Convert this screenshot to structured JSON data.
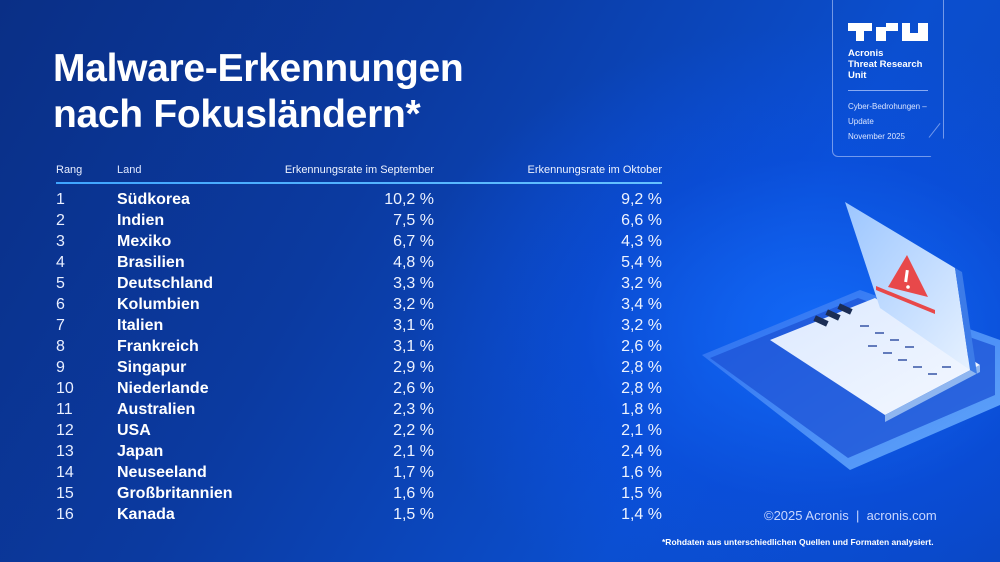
{
  "title": {
    "line1": "Malware-Erkennungen",
    "line2": "nach Fokusländern*"
  },
  "badge": {
    "logo_icon": "tru-logo-icon",
    "name_lines": [
      "Acronis",
      "Threat Research",
      "Unit"
    ],
    "meta_lines": [
      "Cyber-Bedrohungen –",
      "Update",
      "November 2025"
    ]
  },
  "table": {
    "headers": {
      "rank": "Rang",
      "country": "Land",
      "september": "Erkennungsrate im September",
      "october": "Erkennungsrate im Oktober"
    },
    "rows": [
      {
        "rank": "1",
        "country": "Südkorea",
        "september": "10,2 %",
        "october": "9,2 %"
      },
      {
        "rank": "2",
        "country": "Indien",
        "september": "7,5 %",
        "october": "6,6 %"
      },
      {
        "rank": "3",
        "country": "Mexiko",
        "september": "6,7 %",
        "october": "4,3 %"
      },
      {
        "rank": "4",
        "country": "Brasilien",
        "september": "4,8 %",
        "october": "5,4 %"
      },
      {
        "rank": "5",
        "country": "Deutschland",
        "september": "3,3 %",
        "october": "3,2 %"
      },
      {
        "rank": "6",
        "country": "Kolumbien",
        "september": "3,2 %",
        "october": "3,4 %"
      },
      {
        "rank": "7",
        "country": "Italien",
        "september": "3,1 %",
        "october": "3,2 %"
      },
      {
        "rank": "8",
        "country": "Frankreich",
        "september": "3,1 %",
        "october": "2,6 %"
      },
      {
        "rank": "9",
        "country": "Singapur",
        "september": "2,9 %",
        "october": "2,8 %"
      },
      {
        "rank": "10",
        "country": "Niederlande",
        "september": "2,6 %",
        "october": "2,8 %"
      },
      {
        "rank": "11",
        "country": "Australien",
        "september": "2,3 %",
        "october": "1,8 %"
      },
      {
        "rank": "12",
        "country": "USA",
        "september": "2,2 %",
        "october": "2,1 %"
      },
      {
        "rank": "13",
        "country": "Japan",
        "september": "2,1 %",
        "october": "2,4 %"
      },
      {
        "rank": "14",
        "country": "Neuseeland",
        "september": "1,7 %",
        "october": "1,6 %"
      },
      {
        "rank": "15",
        "country": "Großbritannien",
        "september": "1,6 %",
        "october": "1,5 %"
      },
      {
        "rank": "16",
        "country": "Kanada",
        "september": "1,5 %",
        "october": "1,4 %"
      }
    ]
  },
  "illustration": {
    "icon": "laptop-warning-icon"
  },
  "footer": {
    "copyright": "©2025 Acronis  |  acronis.com",
    "footnote": "*Rohdaten aus unterschiedlichen Quellen und Formaten analysiert."
  },
  "colors": {
    "accent_rule": "#3fa5ff",
    "background_dark": "#0a2f86",
    "background_bright": "#0b4fcf",
    "warning_red": "#e8484a"
  },
  "chart_data": {
    "type": "table",
    "title": "Malware-Erkennungen nach Fokusländern*",
    "columns": [
      "Rang",
      "Land",
      "Erkennungsrate im September",
      "Erkennungsrate im Oktober"
    ],
    "categories": [
      "Südkorea",
      "Indien",
      "Mexiko",
      "Brasilien",
      "Deutschland",
      "Kolumbien",
      "Italien",
      "Frankreich",
      "Singapur",
      "Niederlande",
      "Australien",
      "USA",
      "Japan",
      "Neuseeland",
      "Großbritannien",
      "Kanada"
    ],
    "series": [
      {
        "name": "Erkennungsrate im September",
        "unit": "%",
        "values": [
          10.2,
          7.5,
          6.7,
          4.8,
          3.3,
          3.2,
          3.1,
          3.1,
          2.9,
          2.6,
          2.3,
          2.2,
          2.1,
          1.7,
          1.6,
          1.5
        ]
      },
      {
        "name": "Erkennungsrate im Oktober",
        "unit": "%",
        "values": [
          9.2,
          6.6,
          4.3,
          5.4,
          3.2,
          3.4,
          3.2,
          2.6,
          2.8,
          2.8,
          1.8,
          2.1,
          2.4,
          1.6,
          1.5,
          1.4
        ]
      }
    ],
    "annotations": [
      "*Rohdaten aus unterschiedlichen Quellen und Formaten analysiert."
    ]
  }
}
